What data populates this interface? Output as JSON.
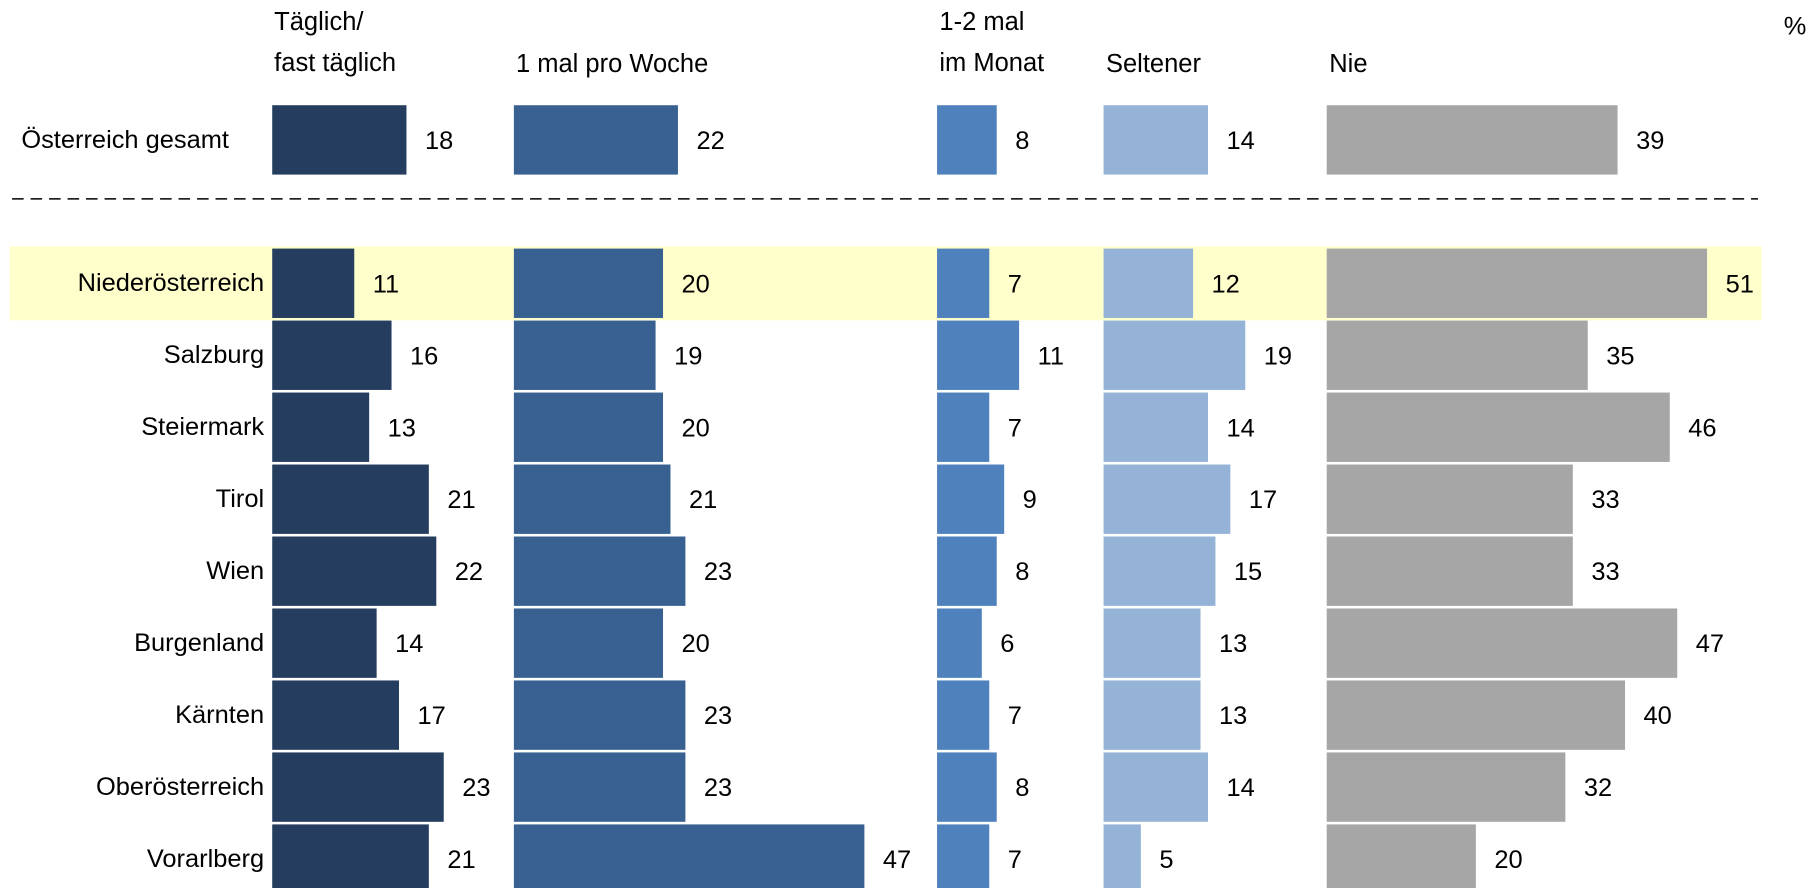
{
  "chart_data": {
    "type": "bar",
    "unit": "%",
    "highlight": "Niederösterreich",
    "categories": [
      "Österreich gesamt",
      "Niederösterreich",
      "Salzburg",
      "Steiermark",
      "Tirol",
      "Wien",
      "Burgenland",
      "Kärnten",
      "Oberösterreich",
      "Vorarlberg"
    ],
    "series": [
      {
        "name": "Täglich/\nfast täglich",
        "color": "#253d5e",
        "values": [
          18,
          11,
          16,
          13,
          21,
          22,
          14,
          17,
          23,
          21
        ]
      },
      {
        "name": "1 mal pro Woche",
        "color": "#386192",
        "values": [
          22,
          20,
          19,
          20,
          21,
          23,
          20,
          23,
          23,
          47
        ]
      },
      {
        "name": "1-2 mal\nim Monat",
        "color": "#4f81bd",
        "values": [
          8,
          7,
          11,
          7,
          9,
          8,
          6,
          7,
          8,
          7
        ]
      },
      {
        "name": "Seltener",
        "color": "#95b3d7",
        "values": [
          14,
          12,
          19,
          14,
          17,
          15,
          13,
          13,
          14,
          5
        ]
      },
      {
        "name": "Nie",
        "color": "#a6a6a6",
        "values": [
          39,
          51,
          35,
          46,
          33,
          33,
          47,
          40,
          32,
          20
        ]
      }
    ]
  }
}
